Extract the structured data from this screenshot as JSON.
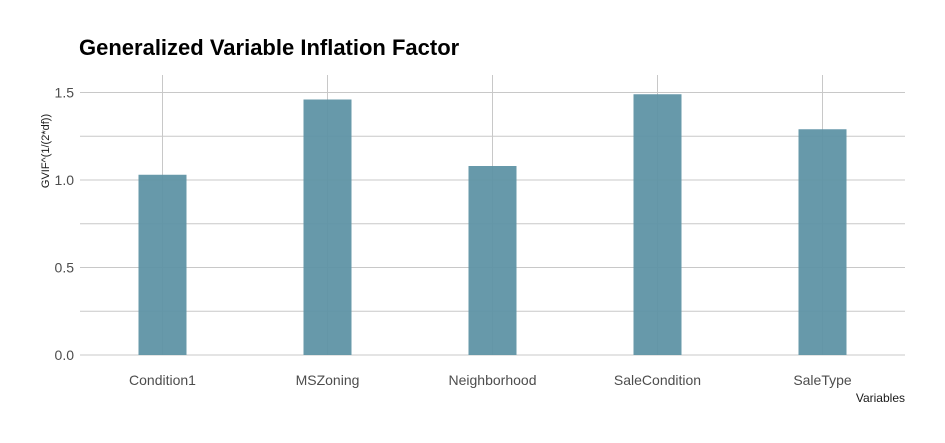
{
  "chart_data": {
    "type": "bar",
    "title": "Generalized Variable Inflation Factor",
    "xlabel": "Variables",
    "ylabel": "GVIF^(1/(2*df))",
    "categories": [
      "Condition1",
      "MSZoning",
      "Neighborhood",
      "SaleCondition",
      "SaleType"
    ],
    "values": [
      1.03,
      1.46,
      1.08,
      1.49,
      1.29
    ],
    "ylim": [
      0,
      1.6
    ],
    "yticks": [
      "0.0",
      "0.5",
      "1.0",
      "1.5"
    ],
    "grid": true,
    "bar_color": "#5f93a5",
    "grid_color": "#c8c8c8"
  }
}
